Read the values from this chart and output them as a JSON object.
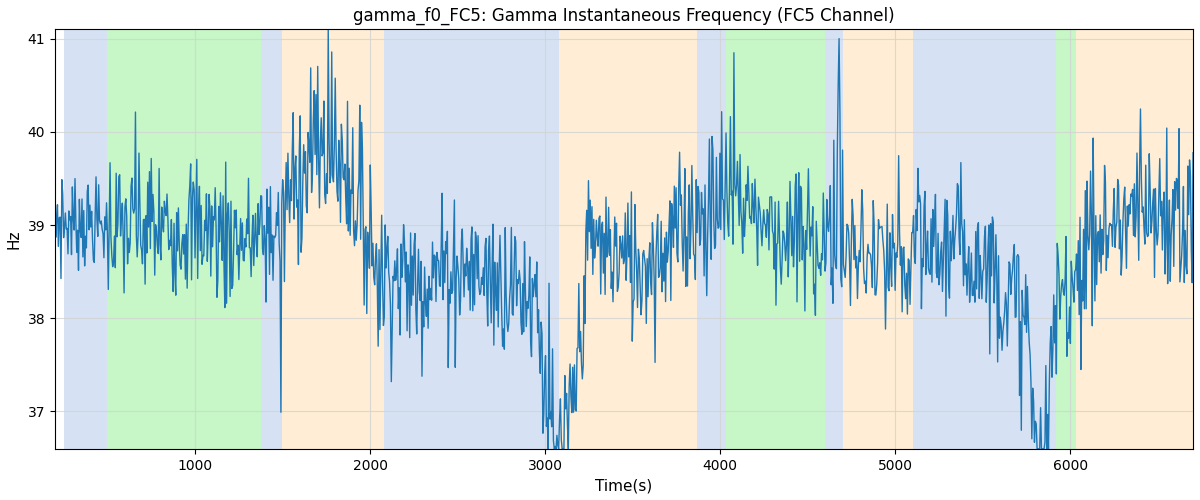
{
  "title": "gamma_f0_FC5: Gamma Instantaneous Frequency (FC5 Channel)",
  "xlabel": "Time(s)",
  "ylabel": "Hz",
  "xlim": [
    200,
    6700
  ],
  "ylim": [
    36.6,
    41.1
  ],
  "yticks": [
    37,
    38,
    39,
    40,
    41
  ],
  "line_color": "#1f77b4",
  "line_width": 1.0,
  "bg_regions": [
    {
      "xmin": 250,
      "xmax": 500,
      "color": "#aec6e8",
      "alpha": 0.5
    },
    {
      "xmin": 500,
      "xmax": 1380,
      "color": "#90ee90",
      "alpha": 0.5
    },
    {
      "xmin": 1380,
      "xmax": 1500,
      "color": "#aec6e8",
      "alpha": 0.5
    },
    {
      "xmin": 1500,
      "xmax": 2080,
      "color": "#ffdead",
      "alpha": 0.5
    },
    {
      "xmin": 2080,
      "xmax": 3080,
      "color": "#aec6e8",
      "alpha": 0.5
    },
    {
      "xmin": 3080,
      "xmax": 3870,
      "color": "#ffdead",
      "alpha": 0.5
    },
    {
      "xmin": 3870,
      "xmax": 4030,
      "color": "#aec6e8",
      "alpha": 0.5
    },
    {
      "xmin": 4030,
      "xmax": 4600,
      "color": "#90ee90",
      "alpha": 0.5
    },
    {
      "xmin": 4600,
      "xmax": 4700,
      "color": "#aec6e8",
      "alpha": 0.5
    },
    {
      "xmin": 4700,
      "xmax": 5100,
      "color": "#ffdead",
      "alpha": 0.5
    },
    {
      "xmin": 5100,
      "xmax": 5920,
      "color": "#aec6e8",
      "alpha": 0.5
    },
    {
      "xmin": 5920,
      "xmax": 6030,
      "color": "#90ee90",
      "alpha": 0.5
    },
    {
      "xmin": 6030,
      "xmax": 6700,
      "color": "#ffdead",
      "alpha": 0.5
    }
  ],
  "figsize": [
    12.0,
    5.0
  ],
  "dpi": 100
}
